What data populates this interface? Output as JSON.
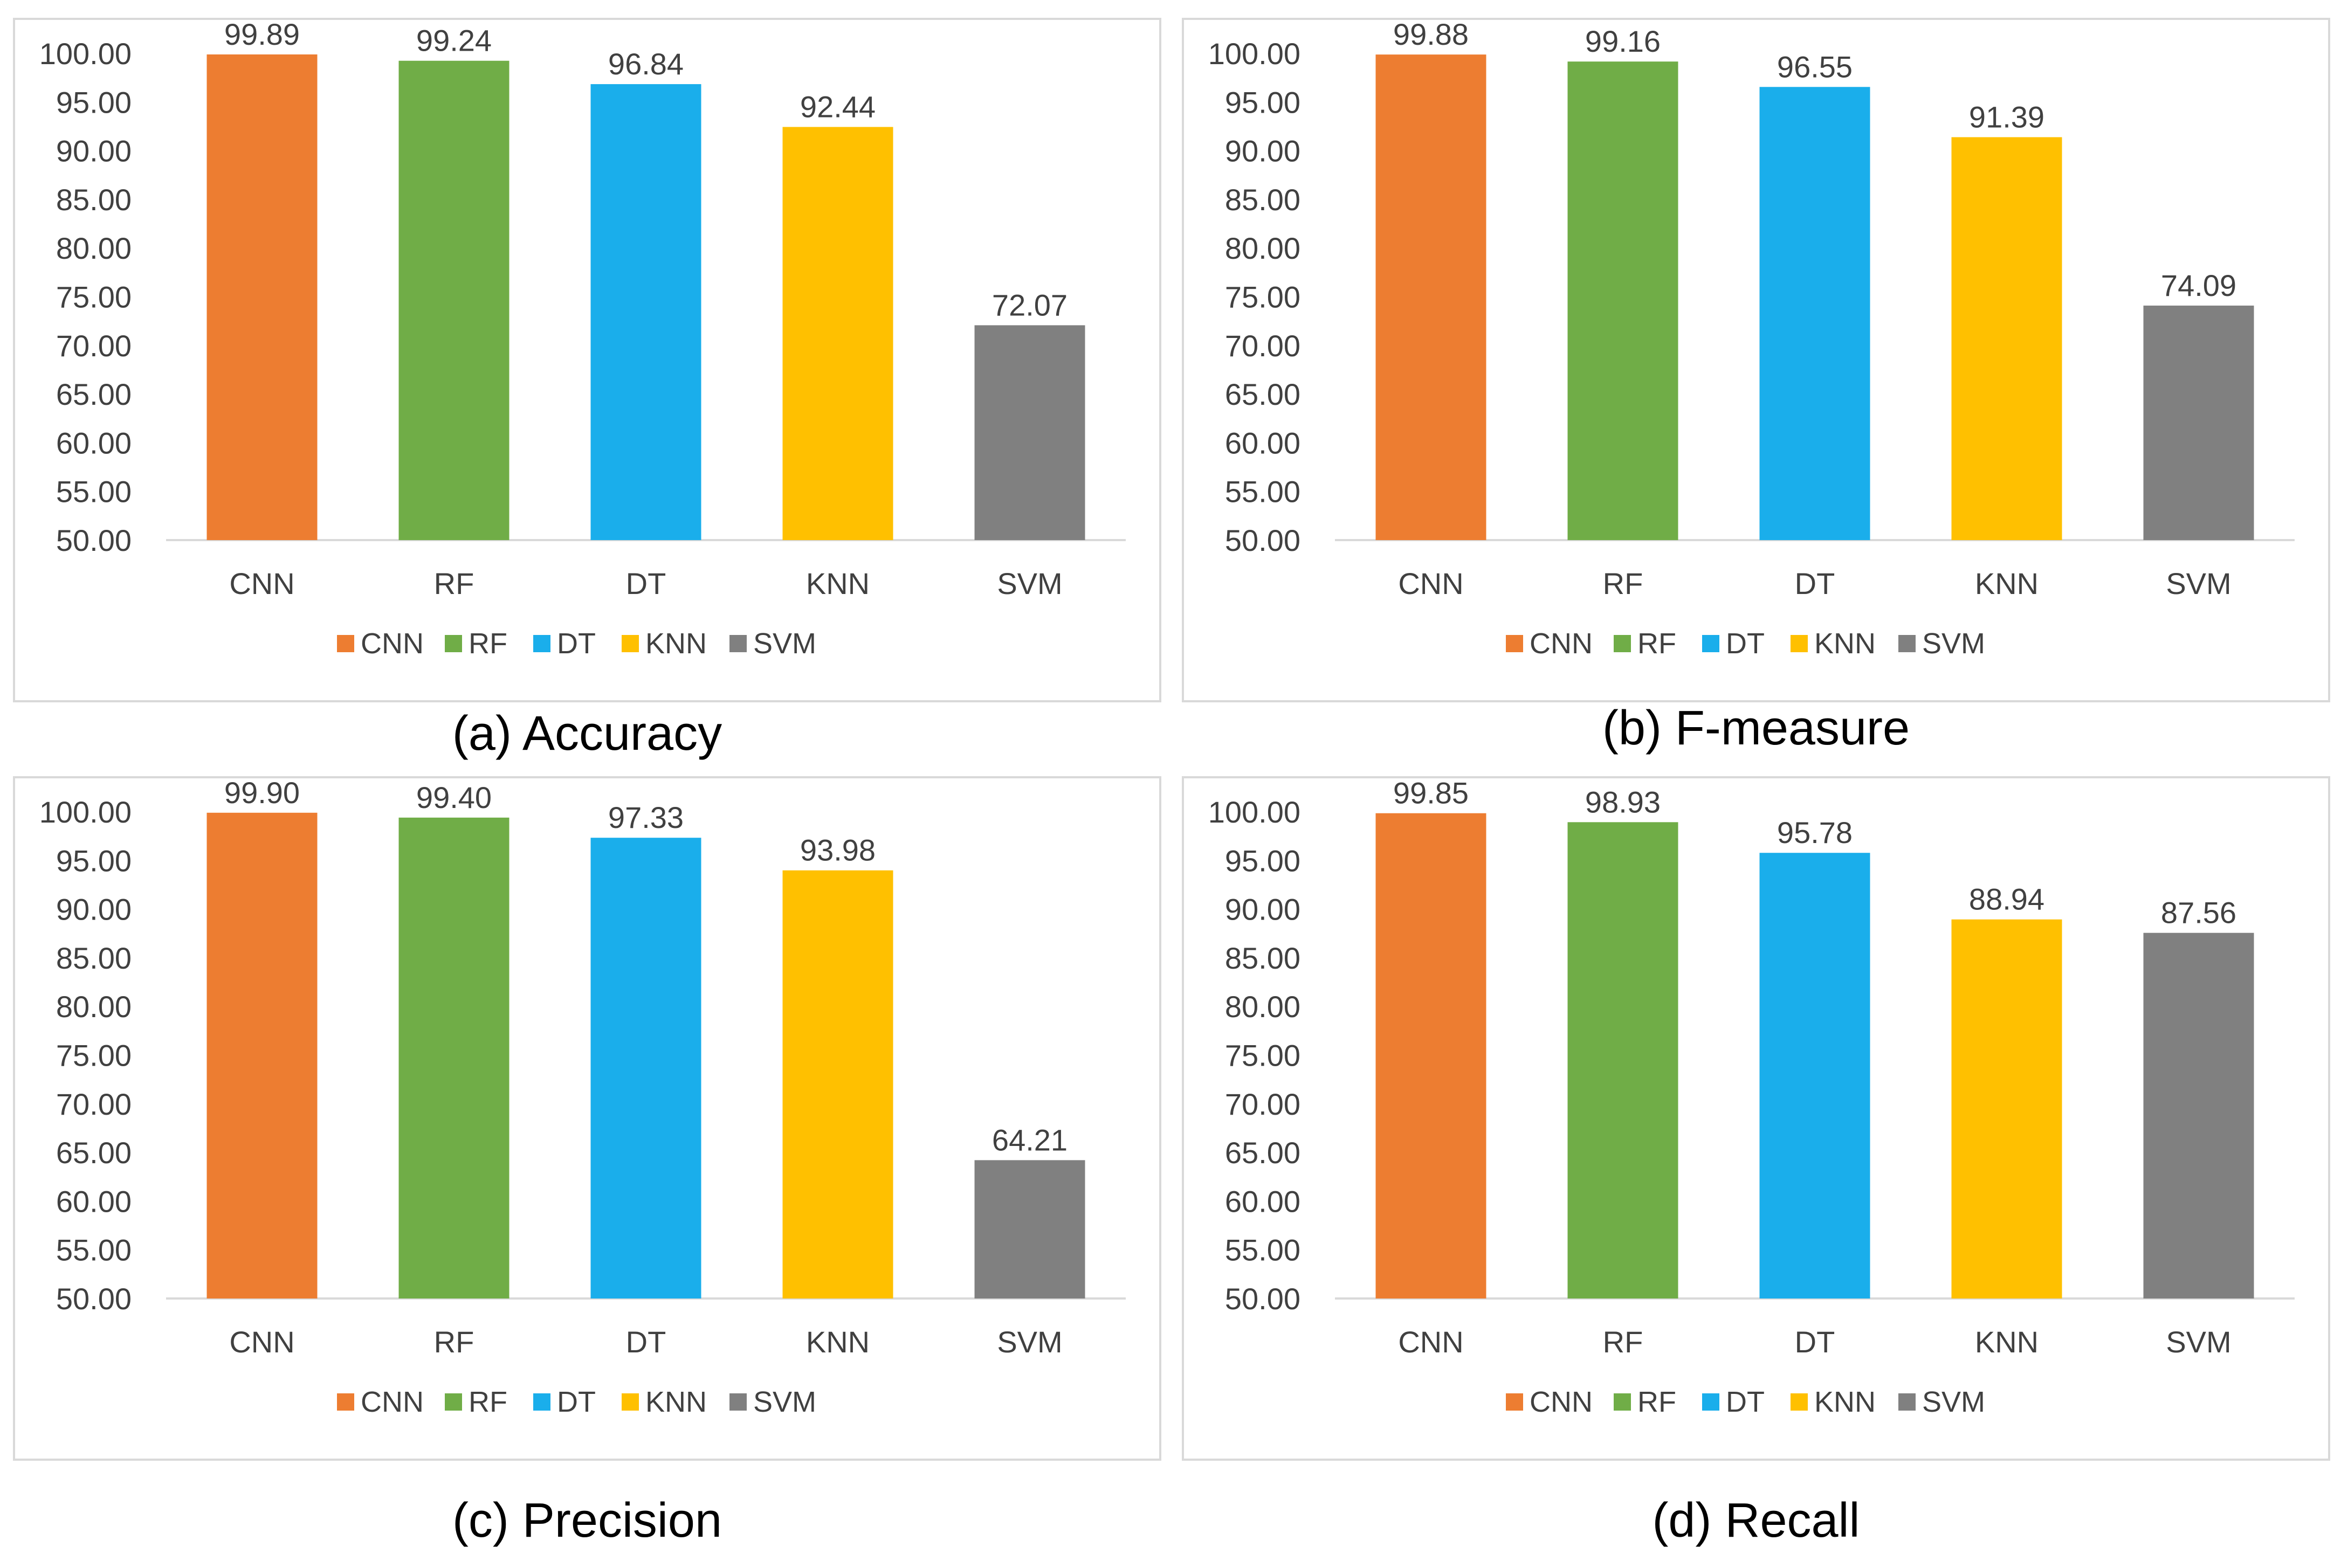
{
  "chart_data": [
    {
      "type": "bar",
      "caption": "(a) Accuracy",
      "categories": [
        "CNN",
        "RF",
        "DT",
        "KNN",
        "SVM"
      ],
      "values": [
        99.89,
        99.24,
        96.84,
        92.44,
        72.07
      ],
      "value_labels": [
        "99.89",
        "99.24",
        "96.84",
        "92.44",
        "72.07"
      ],
      "colors": [
        "#ed7d31",
        "#70ad47",
        "#1aaeeb",
        "#ffc000",
        "#808080"
      ],
      "yticks": [
        "50.00",
        "55.00",
        "60.00",
        "65.00",
        "70.00",
        "75.00",
        "80.00",
        "85.00",
        "90.00",
        "95.00",
        "100.00"
      ],
      "ylim": [
        50,
        100
      ],
      "legend": [
        "CNN",
        "RF",
        "DT",
        "KNN",
        "SVM"
      ],
      "legend_position": "bottom",
      "grid": false
    },
    {
      "type": "bar",
      "caption": "(b) F-measure",
      "categories": [
        "CNN",
        "RF",
        "DT",
        "KNN",
        "SVM"
      ],
      "values": [
        99.88,
        99.16,
        96.55,
        91.39,
        74.09
      ],
      "value_labels": [
        "99.88",
        "99.16",
        "96.55",
        "91.39",
        "74.09"
      ],
      "colors": [
        "#ed7d31",
        "#70ad47",
        "#1aaeeb",
        "#ffc000",
        "#808080"
      ],
      "yticks": [
        "50.00",
        "55.00",
        "60.00",
        "65.00",
        "70.00",
        "75.00",
        "80.00",
        "85.00",
        "90.00",
        "95.00",
        "100.00"
      ],
      "ylim": [
        50,
        100
      ],
      "legend": [
        "CNN",
        "RF",
        "DT",
        "KNN",
        "SVM"
      ],
      "legend_position": "bottom",
      "grid": false
    },
    {
      "type": "bar",
      "caption": "(c) Precision",
      "categories": [
        "CNN",
        "RF",
        "DT",
        "KNN",
        "SVM"
      ],
      "values": [
        99.9,
        99.4,
        97.33,
        93.98,
        64.21
      ],
      "value_labels": [
        "99.90",
        "99.40",
        "97.33",
        "93.98",
        "64.21"
      ],
      "colors": [
        "#ed7d31",
        "#70ad47",
        "#1aaeeb",
        "#ffc000",
        "#808080"
      ],
      "yticks": [
        "50.00",
        "55.00",
        "60.00",
        "65.00",
        "70.00",
        "75.00",
        "80.00",
        "85.00",
        "90.00",
        "95.00",
        "100.00"
      ],
      "ylim": [
        50,
        100
      ],
      "legend": [
        "CNN",
        "RF",
        "DT",
        "KNN",
        "SVM"
      ],
      "legend_position": "bottom",
      "grid": false
    },
    {
      "type": "bar",
      "caption": "(d) Recall",
      "categories": [
        "CNN",
        "RF",
        "DT",
        "KNN",
        "SVM"
      ],
      "values": [
        99.85,
        98.93,
        95.78,
        88.94,
        87.56
      ],
      "value_labels": [
        "99.85",
        "98.93",
        "95.78",
        "88.94",
        "87.56"
      ],
      "colors": [
        "#ed7d31",
        "#70ad47",
        "#1aaeeb",
        "#ffc000",
        "#808080"
      ],
      "yticks": [
        "50.00",
        "55.00",
        "60.00",
        "65.00",
        "70.00",
        "75.00",
        "80.00",
        "85.00",
        "90.00",
        "95.00",
        "100.00"
      ],
      "ylim": [
        50,
        100
      ],
      "legend": [
        "CNN",
        "RF",
        "DT",
        "KNN",
        "SVM"
      ],
      "legend_position": "bottom",
      "grid": false
    }
  ]
}
